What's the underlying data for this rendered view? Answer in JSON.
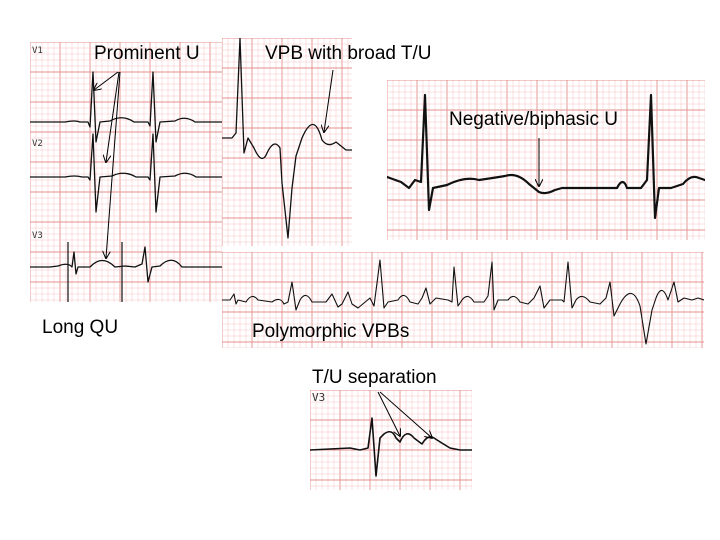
{
  "colors": {
    "grid_minor": "#f3c4c4",
    "grid_major": "#e58f8f",
    "trace": "#111111",
    "background": "#ffffff"
  },
  "annotations": {
    "prominent_u": "Prominent U",
    "vpb_broad_tu": "VPB with broad T/U",
    "negative_biphasic_u": "Negative/biphasic U",
    "long_qu": "Long QU",
    "polymorphic_vpbs": "Polymorphic VPBs",
    "tu_separation": "T/U separation"
  },
  "leads": {
    "v1": "V1",
    "v2": "V2",
    "v3_left": "V3",
    "v3_bottom": "V3"
  }
}
